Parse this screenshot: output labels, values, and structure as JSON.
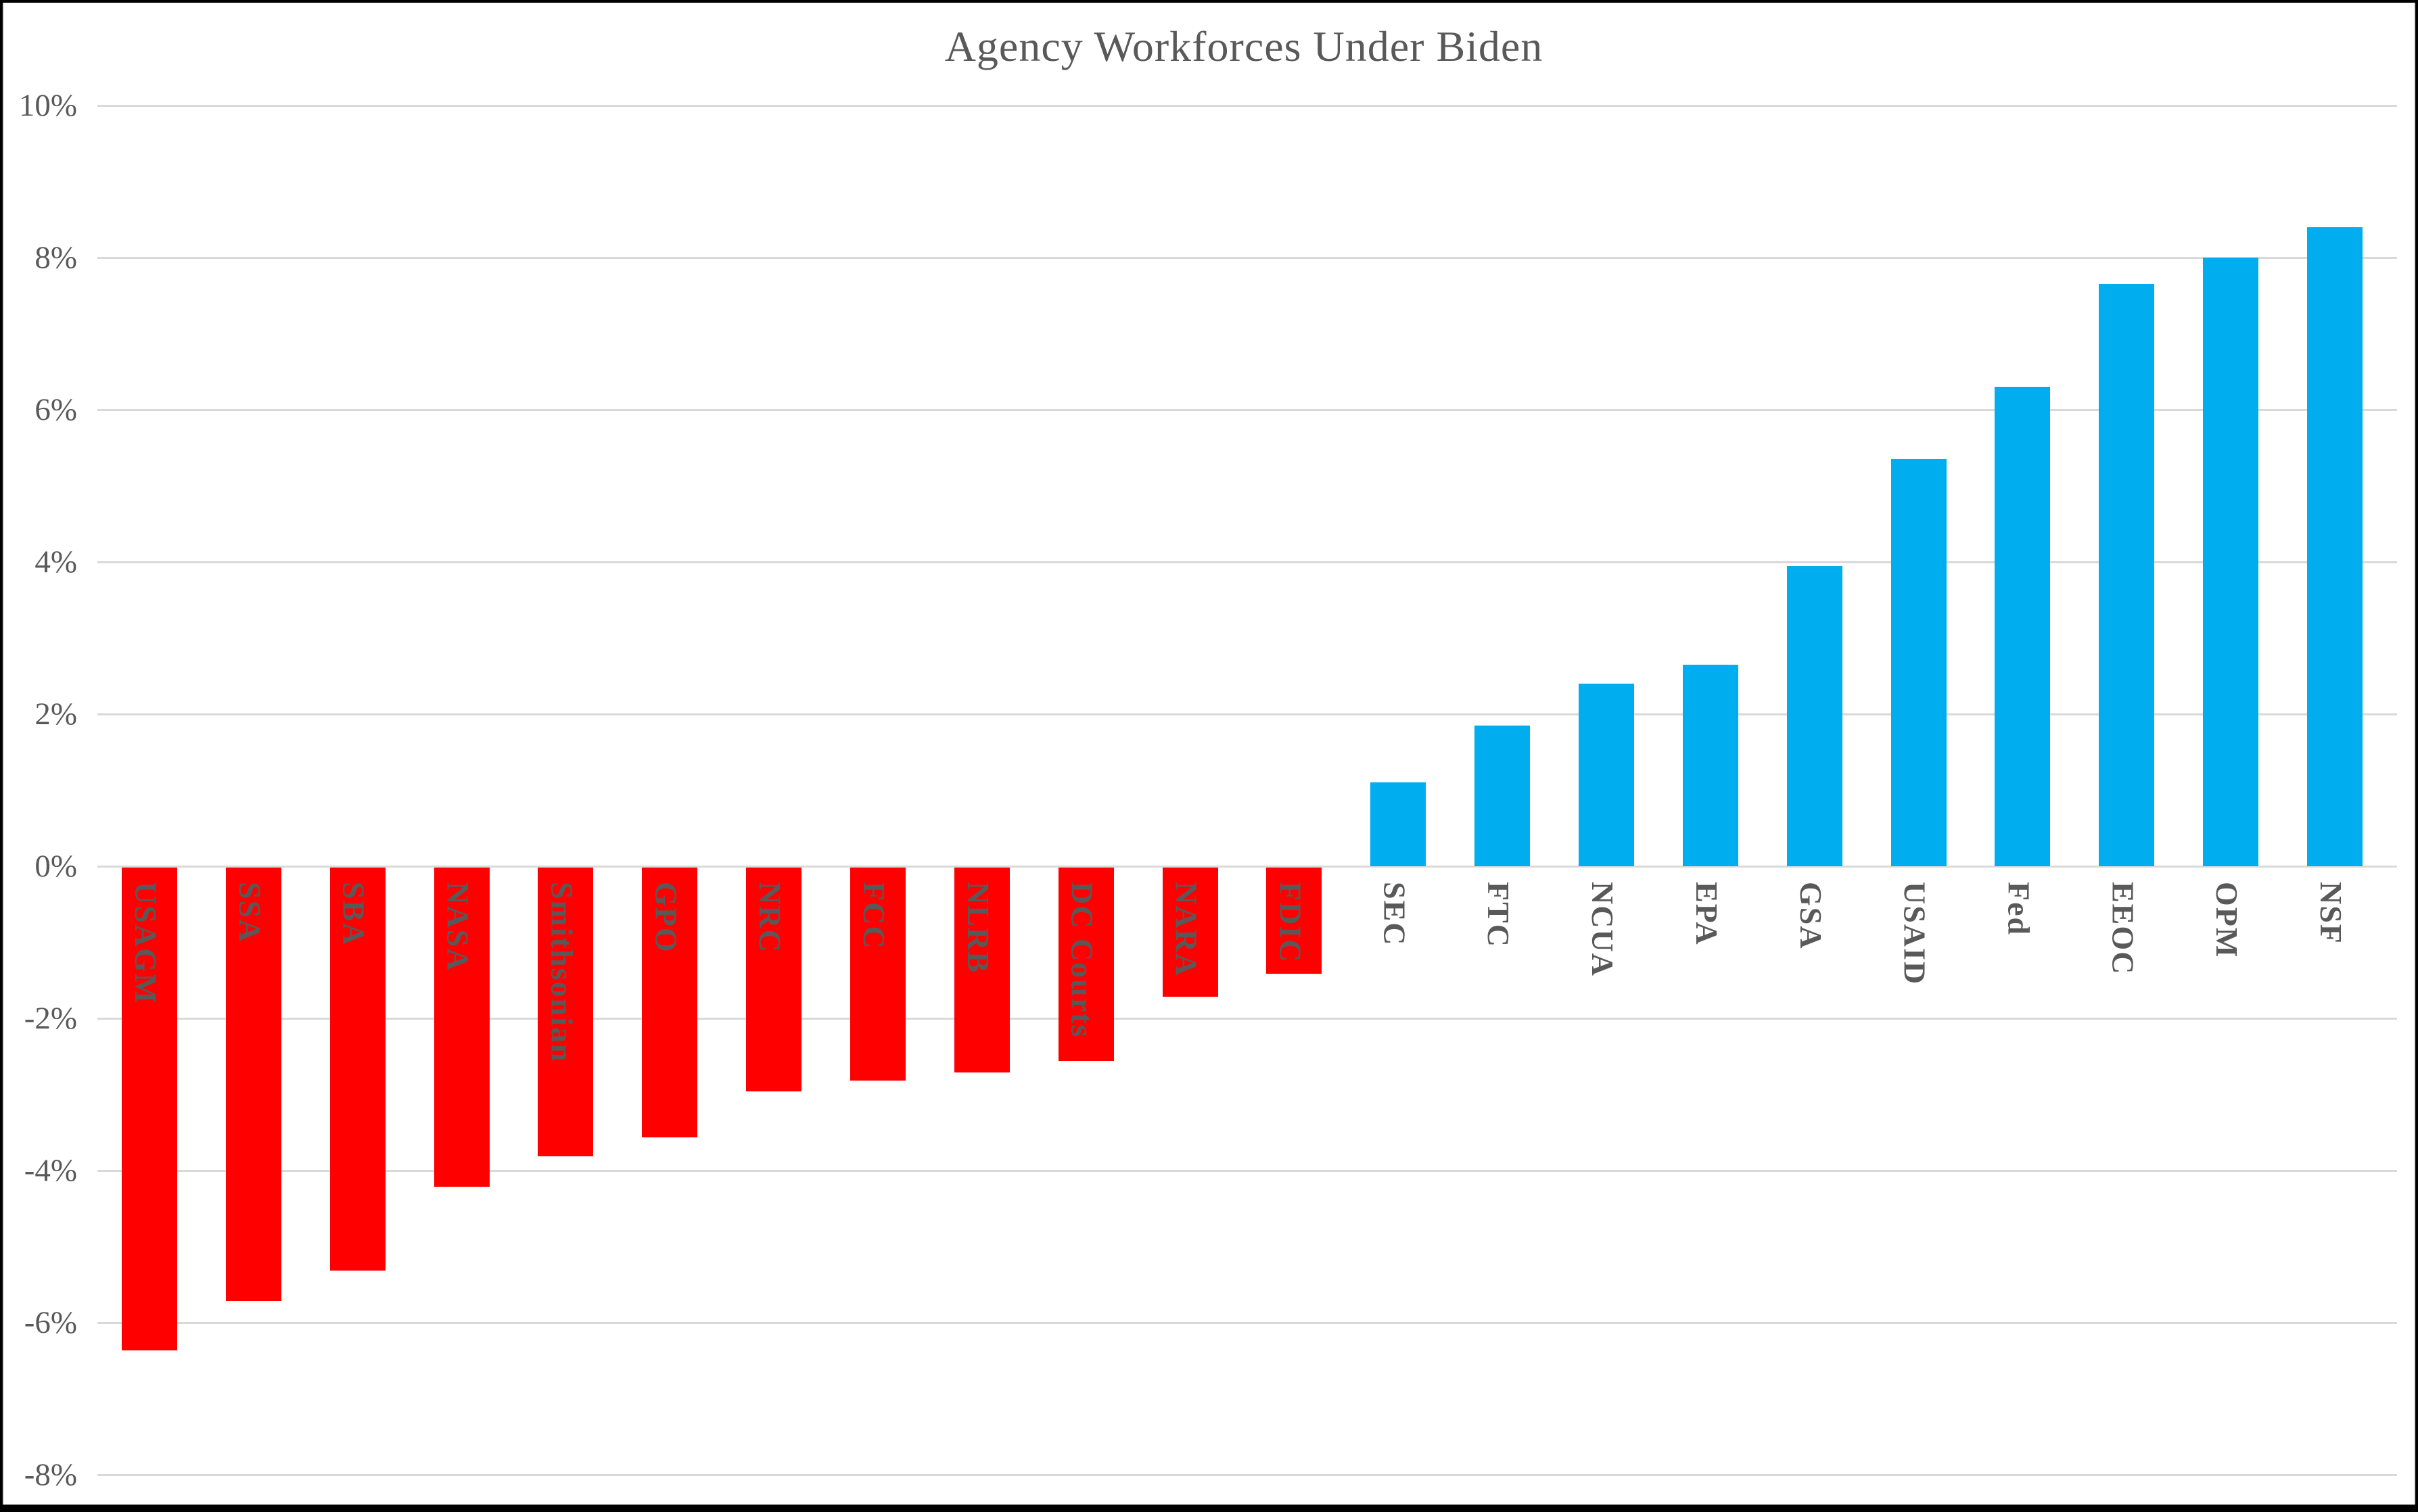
{
  "chart_data": {
    "type": "bar",
    "title": "Agency Workforces Under Biden",
    "categories": [
      "USAGM",
      "SSA",
      "SBA",
      "NASA",
      "Smithsonian",
      "GPO",
      "NRC",
      "FCC",
      "NLRB",
      "DC Courts",
      "NARA",
      "FDIC",
      "SEC",
      "FTC",
      "NCUA",
      "EPA",
      "GSA",
      "USAID",
      "Fed",
      "EEOC",
      "OPM",
      "NSF"
    ],
    "values": [
      -6.35,
      -5.7,
      -5.3,
      -4.2,
      -3.8,
      -3.55,
      -2.95,
      -2.8,
      -2.7,
      -2.55,
      -1.7,
      -1.4,
      1.1,
      1.85,
      2.4,
      2.65,
      3.95,
      5.35,
      6.3,
      7.65,
      8.0,
      8.4
    ],
    "unit": "%",
    "xlabel": "",
    "ylabel": "",
    "ylim": [
      -8,
      10
    ],
    "ytick_step": 2,
    "ytick_labels": [
      "10%",
      "8%",
      "6%",
      "4%",
      "2%",
      "0%",
      "-2%",
      "-4%",
      "-6%",
      "-8%"
    ],
    "grid": true,
    "legend_position": "none",
    "colors": {
      "negative": "#FF0000",
      "positive": "#00AEEF",
      "label": "#595959",
      "gridline": "#D9D9D9",
      "title": "#595959"
    }
  }
}
